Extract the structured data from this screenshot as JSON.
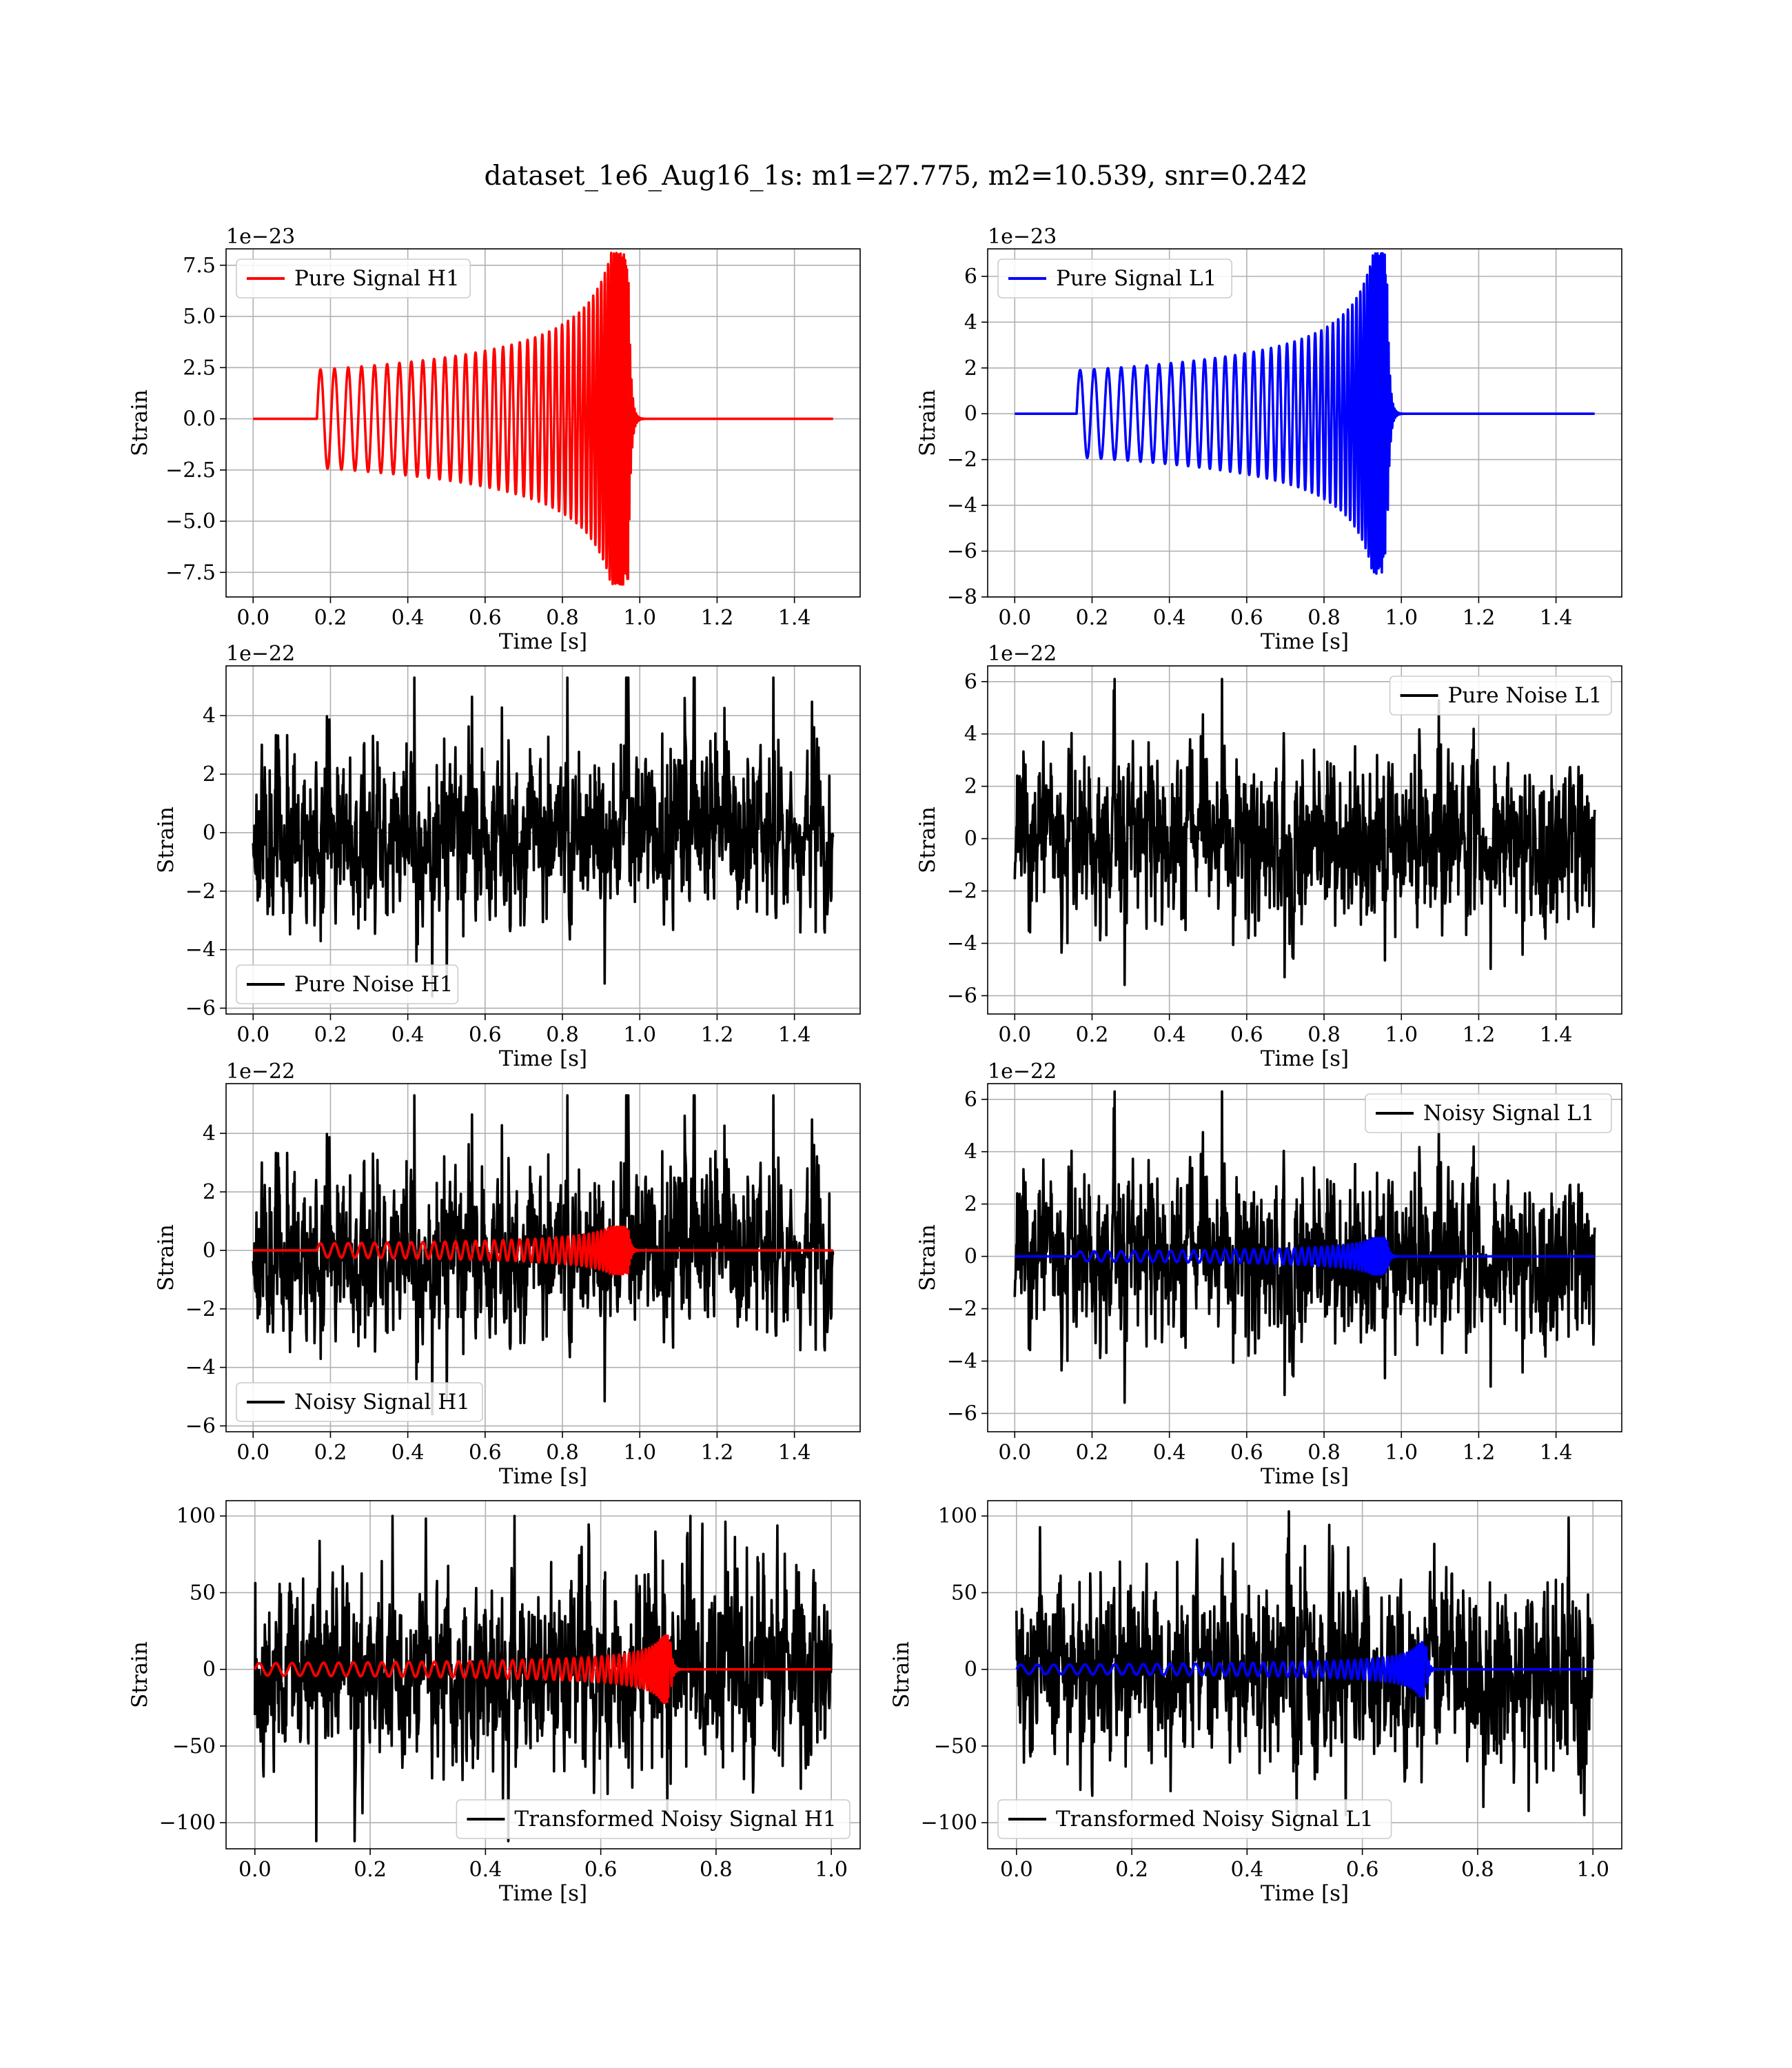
{
  "chart_data": {
    "title": "dataset_1e6_Aug16_1s: m1=27.775, m2=10.539, snr=0.242",
    "panels": [
      {
        "id": "pure-signal-h1",
        "type": "line",
        "xlabel": "Time [s]",
        "ylabel": "Strain",
        "exponent": "1e−23",
        "xlim": [
          -0.07,
          1.57
        ],
        "ylim": [
          -8.7,
          8.3
        ],
        "xticks": [
          0.0,
          0.2,
          0.4,
          0.6,
          0.8,
          1.0,
          1.2,
          1.4
        ],
        "xtick_labels": [
          "0.0",
          "0.2",
          "0.4",
          "0.6",
          "0.8",
          "1.0",
          "1.2",
          "1.4"
        ],
        "yticks": [
          -7.5,
          -5.0,
          -2.5,
          0.0,
          2.5,
          5.0,
          7.5
        ],
        "ytick_labels": [
          "−7.5",
          "−5.0",
          "−2.5",
          "0.0",
          "2.5",
          "5.0",
          "7.5"
        ],
        "legend": {
          "entries": [
            {
              "label": "Pure Signal H1",
              "color": "#ff0000"
            }
          ],
          "loc": "upper left"
        },
        "series": [
          {
            "name": "Pure Signal H1",
            "kind": "chirp",
            "color": "#ff0000",
            "t_start": 0.0,
            "t_end": 1.5,
            "t0": 0.165,
            "tc": 0.97,
            "amp0": 2.4,
            "amp_peak": 8.1,
            "f0": 27,
            "gamma": 0.55,
            "ringdown": 0.006
          }
        ]
      },
      {
        "id": "pure-signal-l1",
        "type": "line",
        "xlabel": "Time [s]",
        "ylabel": "Strain",
        "exponent": "1e−23",
        "xlim": [
          -0.07,
          1.57
        ],
        "ylim": [
          -8.0,
          7.2
        ],
        "xticks": [
          0.0,
          0.2,
          0.4,
          0.6,
          0.8,
          1.0,
          1.2,
          1.4
        ],
        "xtick_labels": [
          "0.0",
          "0.2",
          "0.4",
          "0.6",
          "0.8",
          "1.0",
          "1.2",
          "1.4"
        ],
        "yticks": [
          -8,
          -6,
          -4,
          -2,
          0,
          2,
          4,
          6
        ],
        "ytick_labels": [
          "−8",
          "−6",
          "−4",
          "−2",
          "0",
          "2",
          "4",
          "6"
        ],
        "legend": {
          "entries": [
            {
              "label": "Pure Signal L1",
              "color": "#0000ff"
            }
          ],
          "loc": "upper left"
        },
        "series": [
          {
            "name": "Pure Signal L1",
            "kind": "chirp",
            "color": "#0000ff",
            "t_start": 0.0,
            "t_end": 1.5,
            "t0": 0.16,
            "tc": 0.962,
            "amp0": 1.9,
            "amp_peak": 7.0,
            "f0": 27,
            "gamma": 0.55,
            "ringdown": 0.006
          }
        ]
      },
      {
        "id": "pure-noise-h1",
        "type": "line",
        "xlabel": "Time [s]",
        "ylabel": "Strain",
        "exponent": "1e−22",
        "xlim": [
          -0.07,
          1.57
        ],
        "ylim": [
          -6.2,
          5.7
        ],
        "xticks": [
          0.0,
          0.2,
          0.4,
          0.6,
          0.8,
          1.0,
          1.2,
          1.4
        ],
        "xtick_labels": [
          "0.0",
          "0.2",
          "0.4",
          "0.6",
          "0.8",
          "1.0",
          "1.2",
          "1.4"
        ],
        "yticks": [
          -6,
          -4,
          -2,
          0,
          2,
          4
        ],
        "ytick_labels": [
          "−6",
          "−4",
          "−2",
          "0",
          "2",
          "4"
        ],
        "legend": {
          "entries": [
            {
              "label": "Pure Noise H1",
              "color": "#000000"
            }
          ],
          "loc": "lower left"
        },
        "series": [
          {
            "name": "Pure Noise H1",
            "kind": "noise",
            "color": "#000000",
            "t_start": 0.0,
            "t_end": 1.5,
            "sigma": 1.3,
            "max": 5.3,
            "min": -5.6,
            "seed": 11
          }
        ]
      },
      {
        "id": "pure-noise-l1",
        "type": "line",
        "xlabel": "Time [s]",
        "ylabel": "Strain",
        "exponent": "1e−22",
        "xlim": [
          -0.07,
          1.57
        ],
        "ylim": [
          -6.7,
          6.6
        ],
        "xticks": [
          0.0,
          0.2,
          0.4,
          0.6,
          0.8,
          1.0,
          1.2,
          1.4
        ],
        "xtick_labels": [
          "0.0",
          "0.2",
          "0.4",
          "0.6",
          "0.8",
          "1.0",
          "1.2",
          "1.4"
        ],
        "yticks": [
          -6,
          -4,
          -2,
          0,
          2,
          4,
          6
        ],
        "ytick_labels": [
          "−6",
          "−4",
          "−2",
          "0",
          "2",
          "4",
          "6"
        ],
        "legend": {
          "entries": [
            {
              "label": "Pure Noise L1",
              "color": "#000000"
            }
          ],
          "loc": "upper right"
        },
        "series": [
          {
            "name": "Pure Noise L1",
            "kind": "noise",
            "color": "#000000",
            "t_start": 0.0,
            "t_end": 1.5,
            "sigma": 1.4,
            "max": 6.1,
            "min": -6.0,
            "seed": 23
          }
        ]
      },
      {
        "id": "noisy-signal-h1",
        "type": "line",
        "xlabel": "Time [s]",
        "ylabel": "Strain",
        "exponent": "1e−22",
        "xlim": [
          -0.07,
          1.57
        ],
        "ylim": [
          -6.2,
          5.7
        ],
        "xticks": [
          0.0,
          0.2,
          0.4,
          0.6,
          0.8,
          1.0,
          1.2,
          1.4
        ],
        "xtick_labels": [
          "0.0",
          "0.2",
          "0.4",
          "0.6",
          "0.8",
          "1.0",
          "1.2",
          "1.4"
        ],
        "yticks": [
          -6,
          -4,
          -2,
          0,
          2,
          4
        ],
        "ytick_labels": [
          "−6",
          "−4",
          "−2",
          "0",
          "2",
          "4"
        ],
        "legend": {
          "entries": [
            {
              "label": "Noisy Signal H1",
              "color": "#000000"
            }
          ],
          "loc": "lower left"
        },
        "series": [
          {
            "name": "Noisy Signal H1",
            "kind": "noise",
            "color": "#000000",
            "t_start": 0.0,
            "t_end": 1.5,
            "sigma": 1.3,
            "max": 5.3,
            "min": -5.6,
            "seed": 11
          },
          {
            "name": "Pure Signal H1 overlay",
            "kind": "chirp",
            "color": "#ff0000",
            "t_start": 0.0,
            "t_end": 1.5,
            "t0": 0.165,
            "tc": 0.97,
            "amp0": 0.24,
            "amp_peak": 0.81,
            "f0": 27,
            "gamma": 0.55,
            "ringdown": 0.006
          }
        ]
      },
      {
        "id": "noisy-signal-l1",
        "type": "line",
        "xlabel": "Time [s]",
        "ylabel": "Strain",
        "exponent": "1e−22",
        "xlim": [
          -0.07,
          1.57
        ],
        "ylim": [
          -6.7,
          6.6
        ],
        "xticks": [
          0.0,
          0.2,
          0.4,
          0.6,
          0.8,
          1.0,
          1.2,
          1.4
        ],
        "xtick_labels": [
          "0.0",
          "0.2",
          "0.4",
          "0.6",
          "0.8",
          "1.0",
          "1.2",
          "1.4"
        ],
        "yticks": [
          -6,
          -4,
          -2,
          0,
          2,
          4,
          6
        ],
        "ytick_labels": [
          "−6",
          "−4",
          "−2",
          "0",
          "2",
          "4",
          "6"
        ],
        "legend": {
          "entries": [
            {
              "label": "Noisy Signal L1",
              "color": "#000000"
            }
          ],
          "loc": "upper right"
        },
        "series": [
          {
            "name": "Noisy Signal L1",
            "kind": "noise",
            "color": "#000000",
            "t_start": 0.0,
            "t_end": 1.5,
            "sigma": 1.4,
            "max": 6.3,
            "min": -6.0,
            "seed": 23
          },
          {
            "name": "Pure Signal L1 overlay",
            "kind": "chirp",
            "color": "#0000ff",
            "t_start": 0.0,
            "t_end": 1.5,
            "t0": 0.16,
            "tc": 0.962,
            "amp0": 0.19,
            "amp_peak": 0.7,
            "f0": 27,
            "gamma": 0.55,
            "ringdown": 0.006
          }
        ]
      },
      {
        "id": "transformed-noisy-signal-h1",
        "type": "line",
        "xlabel": "Time [s]",
        "ylabel": "Strain",
        "exponent": "",
        "xlim": [
          -0.05,
          1.05
        ],
        "ylim": [
          -117,
          110
        ],
        "xticks": [
          0.0,
          0.2,
          0.4,
          0.6,
          0.8,
          1.0
        ],
        "xtick_labels": [
          "0.0",
          "0.2",
          "0.4",
          "0.6",
          "0.8",
          "1.0"
        ],
        "yticks": [
          -100,
          -50,
          0,
          50,
          100
        ],
        "ytick_labels": [
          "−100",
          "−50",
          "0",
          "50",
          "100"
        ],
        "legend": {
          "entries": [
            {
              "label": "Transformed Noisy Signal H1",
              "color": "#000000"
            }
          ],
          "loc": "lower right"
        },
        "series": [
          {
            "name": "Transformed Noisy Signal H1",
            "kind": "noise",
            "color": "#000000",
            "t_start": 0.0,
            "t_end": 1.0,
            "sigma": 27,
            "max": 100,
            "min": -112,
            "seed": 37
          },
          {
            "name": "Transformed signal H1",
            "kind": "chirp",
            "color": "#ff0000",
            "t_start": 0.0,
            "t_end": 1.0,
            "t0": 0.0,
            "tc": 0.72,
            "amp0": 4,
            "amp_peak": 22,
            "f0": 34,
            "gamma": 0.55,
            "ringdown": 0.004
          }
        ]
      },
      {
        "id": "transformed-noisy-signal-l1",
        "type": "line",
        "xlabel": "Time [s]",
        "ylabel": "Strain",
        "exponent": "",
        "xlim": [
          -0.05,
          1.05
        ],
        "ylim": [
          -117,
          110
        ],
        "xticks": [
          0.0,
          0.2,
          0.4,
          0.6,
          0.8,
          1.0
        ],
        "xtick_labels": [
          "0.0",
          "0.2",
          "0.4",
          "0.6",
          "0.8",
          "1.0"
        ],
        "yticks": [
          -100,
          -50,
          0,
          50,
          100
        ],
        "ytick_labels": [
          "−100",
          "−50",
          "0",
          "50",
          "100"
        ],
        "legend": {
          "entries": [
            {
              "label": "Transformed Noisy Signal L1",
              "color": "#000000"
            }
          ],
          "loc": "lower left"
        },
        "series": [
          {
            "name": "Transformed Noisy Signal L1",
            "kind": "noise",
            "color": "#000000",
            "t_start": 0.0,
            "t_end": 1.0,
            "sigma": 27,
            "max": 103,
            "min": -95,
            "seed": 53
          },
          {
            "name": "Transformed signal L1",
            "kind": "chirp",
            "color": "#0000ff",
            "t_start": 0.0,
            "t_end": 1.0,
            "t0": 0.0,
            "tc": 0.71,
            "amp0": 3,
            "amp_peak": 18,
            "f0": 34,
            "gamma": 0.55,
            "ringdown": 0.004
          }
        ]
      }
    ]
  }
}
